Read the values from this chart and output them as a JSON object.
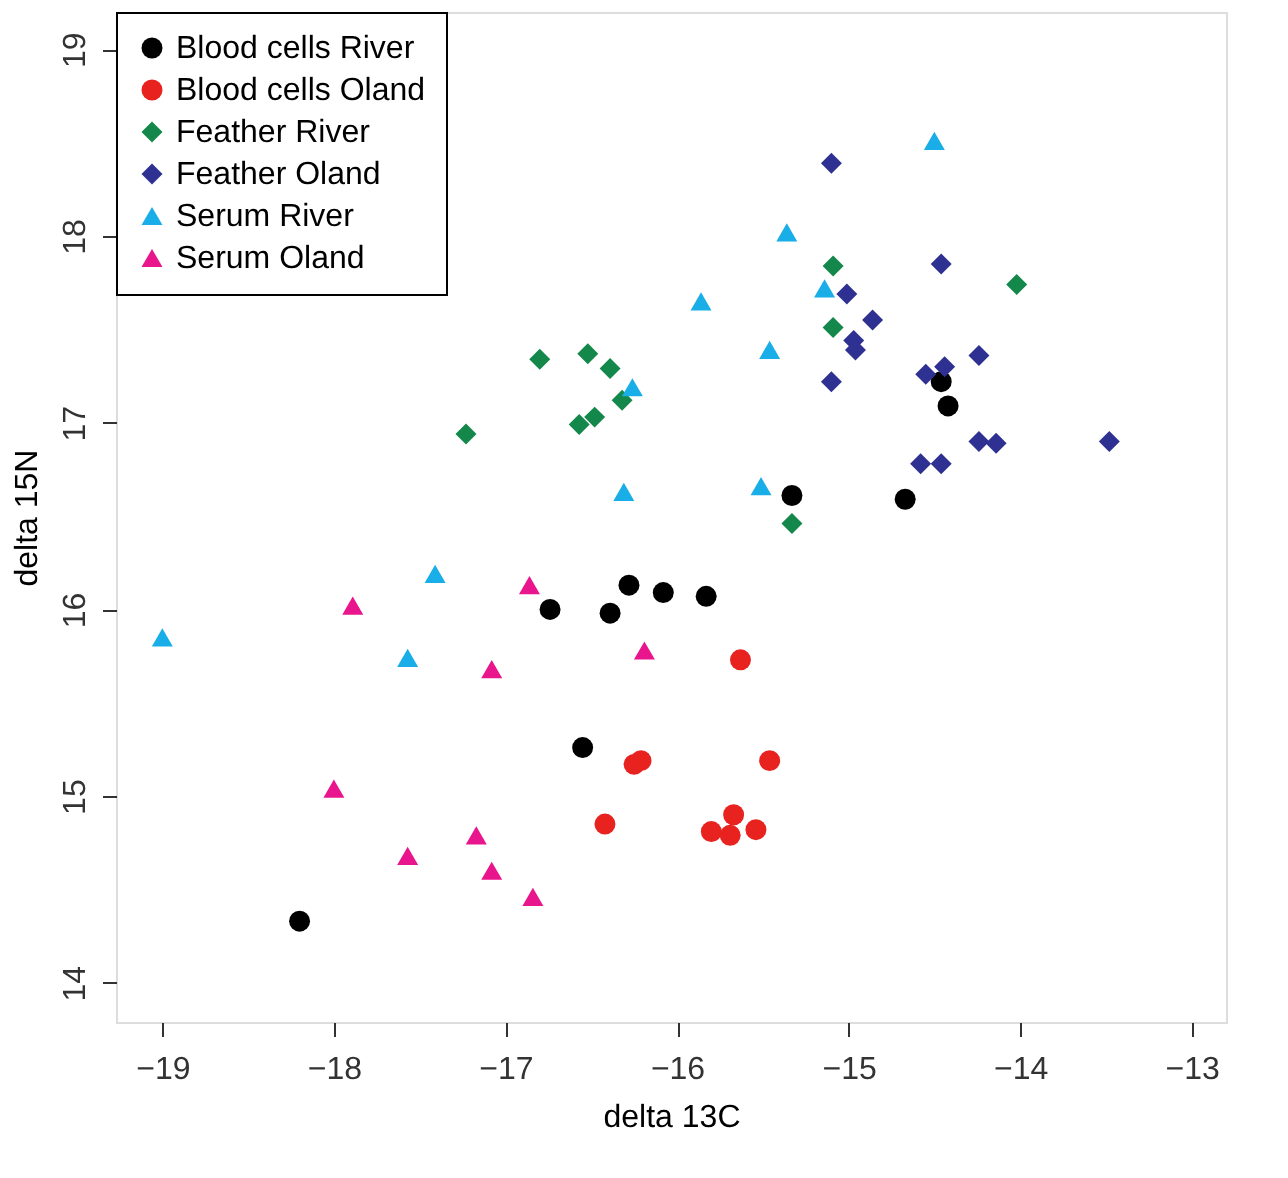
{
  "chart_data": {
    "type": "scatter",
    "xlabel": "delta 13C",
    "ylabel": "delta 15N",
    "xlim": [
      -19.27,
      -12.8
    ],
    "ylim": [
      13.79,
      19.2
    ],
    "xticks": [
      -19,
      -18,
      -17,
      -16,
      -15,
      -14,
      -13
    ],
    "yticks": [
      14,
      15,
      16,
      17,
      18,
      19
    ],
    "grid": false,
    "legend": "top left",
    "series": [
      {
        "name": "Blood cells River",
        "color": "#000000",
        "marker": "circle",
        "x": [
          -18.2,
          -16.74,
          -16.39,
          -16.28,
          -16.08,
          -15.83,
          -16.55,
          -15.33,
          -14.67,
          -14.46,
          -14.42
        ],
        "values": [
          14.33,
          16.0,
          15.98,
          16.13,
          16.09,
          16.07,
          15.26,
          16.61,
          16.59,
          17.22,
          17.09
        ]
      },
      {
        "name": "Blood cells Oland",
        "color": "#e8221f",
        "marker": "circle",
        "x": [
          -15.63,
          -16.25,
          -16.21,
          -15.46,
          -16.42,
          -15.8,
          -15.67,
          -15.69,
          -15.54
        ],
        "values": [
          15.73,
          15.17,
          15.19,
          15.19,
          14.85,
          14.81,
          14.9,
          14.79,
          14.82
        ]
      },
      {
        "name": "Feather River",
        "color": "#13884a",
        "marker": "diamond",
        "x": [
          -17.23,
          -16.8,
          -16.52,
          -16.57,
          -16.48,
          -16.39,
          -16.32,
          -15.09,
          -15.09,
          -14.02,
          -15.33
        ],
        "values": [
          16.94,
          17.34,
          17.37,
          16.99,
          17.03,
          17.29,
          17.12,
          17.84,
          17.51,
          17.74,
          16.46
        ]
      },
      {
        "name": "Feather Oland",
        "color": "#2e3192",
        "marker": "diamond",
        "x": [
          -15.1,
          -14.46,
          -15.01,
          -14.86,
          -14.97,
          -14.96,
          -15.1,
          -14.55,
          -14.44,
          -14.24,
          -14.24,
          -14.14,
          -13.48,
          -14.58,
          -14.46
        ],
        "values": [
          18.39,
          17.85,
          17.69,
          17.55,
          17.44,
          17.39,
          17.22,
          17.26,
          17.3,
          17.36,
          16.9,
          16.89,
          16.9,
          16.78,
          16.78
        ]
      },
      {
        "name": "Serum River",
        "color": "#19aee8",
        "marker": "triangle",
        "x": [
          -14.5,
          -15.36,
          -15.14,
          -15.86,
          -15.46,
          -16.26,
          -16.31,
          -15.51,
          -17.41,
          -19.0,
          -17.57
        ],
        "values": [
          18.51,
          18.02,
          17.72,
          17.65,
          17.39,
          17.19,
          16.63,
          16.66,
          16.19,
          15.85,
          15.74
        ]
      },
      {
        "name": "Serum Oland",
        "color": "#e8158c",
        "marker": "triangle",
        "x": [
          -17.89,
          -16.86,
          -17.08,
          -18.0,
          -17.17,
          -17.57,
          -17.08,
          -16.84,
          -16.19
        ],
        "values": [
          16.02,
          16.13,
          15.68,
          15.04,
          14.79,
          14.68,
          14.6,
          14.46,
          15.78
        ]
      }
    ]
  }
}
